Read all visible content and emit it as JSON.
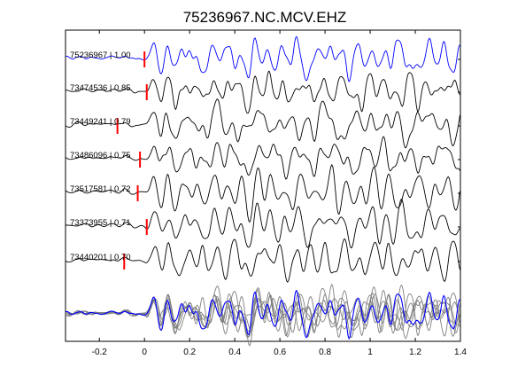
{
  "chart_data": {
    "type": "line",
    "title": "75236967.NC.MCV.EHZ",
    "xlabel": "",
    "ylabel": "",
    "xlim": [
      -0.35,
      1.4
    ],
    "xticks": [
      -0.2,
      0,
      0.2,
      0.4,
      0.6,
      0.8,
      1,
      1.2,
      1.4
    ],
    "xtick_labels": [
      "-0.2",
      "0",
      "0.2",
      "0.4",
      "0.6",
      "0.8",
      "1",
      "1.2",
      "1.4"
    ],
    "grid": false,
    "traces": [
      {
        "id": "75236967",
        "cc": "1.00",
        "pick_time": 0.0,
        "color": "#0000ff"
      },
      {
        "id": "73474536",
        "cc": "0.85",
        "pick_time": 0.01,
        "color": "#000000"
      },
      {
        "id": "73449241",
        "cc": "0.79",
        "pick_time": -0.12,
        "color": "#000000"
      },
      {
        "id": "73486096",
        "cc": "0.75",
        "pick_time": -0.02,
        "color": "#000000"
      },
      {
        "id": "73517581",
        "cc": "0.72",
        "pick_time": -0.03,
        "color": "#000000"
      },
      {
        "id": "73373955",
        "cc": "0.71",
        "pick_time": 0.01,
        "color": "#000000"
      },
      {
        "id": "73440201",
        "cc": "0.70",
        "pick_time": -0.09,
        "color": "#000000"
      }
    ],
    "stack_colors": {
      "reference": "#0000ff",
      "others": "#808080"
    },
    "pick_color": "#ff0000"
  }
}
